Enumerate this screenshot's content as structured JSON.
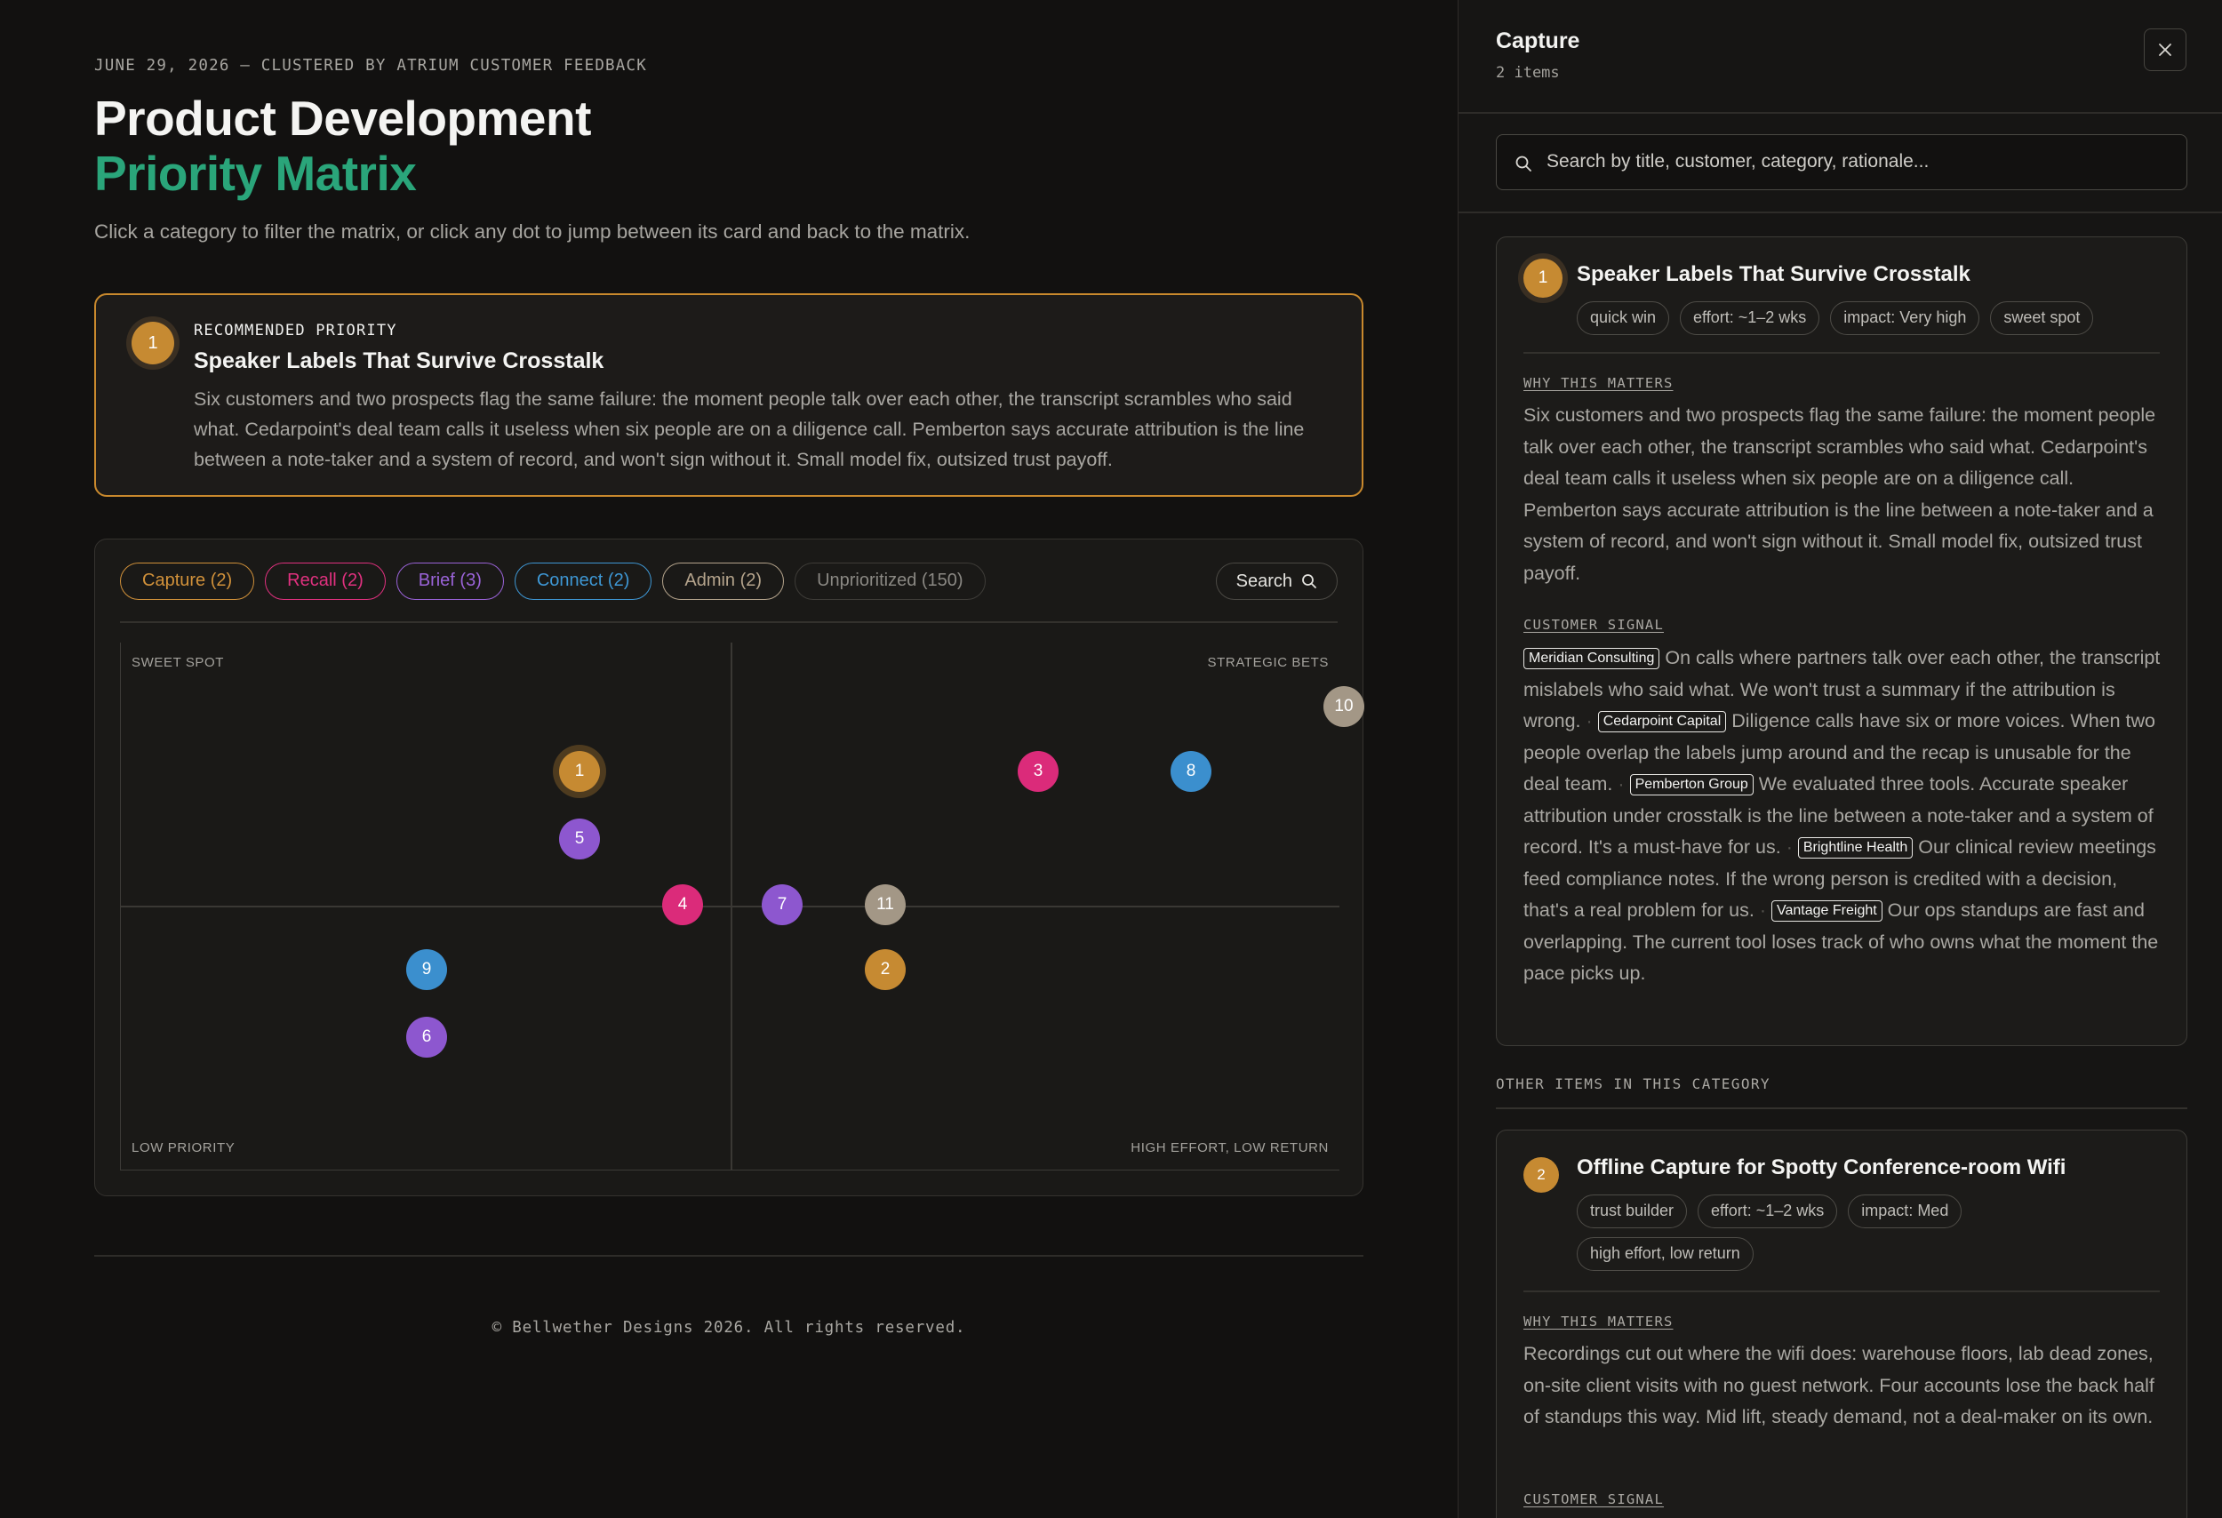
{
  "header": {
    "dateline": "JUNE 29, 2026 — CLUSTERED BY ATRIUM CUSTOMER FEEDBACK",
    "title_line1": "Product Development",
    "title_line2": "Priority Matrix",
    "subtitle": "Click a category to filter the matrix, or click any dot to jump between its card and back to the matrix."
  },
  "recommended": {
    "badge": "1",
    "label": "RECOMMENDED PRIORITY",
    "title": "Speaker Labels That Survive Crosstalk",
    "body": "Six customers and two prospects flag the same failure: the moment people talk over each other, the transcript scrambles who said what. Cedarpoint's deal team calls it useless when six people are on a diligence call. Pemberton says accurate attribution is the line between a note-taker and a system of record, and won't sign without it. Small model fix, outsized trust payoff."
  },
  "filters": [
    {
      "label": "Capture (2)",
      "color": "#d1913a"
    },
    {
      "label": "Recall (2)",
      "color": "#e0317f"
    },
    {
      "label": "Brief (3)",
      "color": "#9a63d8"
    },
    {
      "label": "Connect (2)",
      "color": "#3e97d4"
    },
    {
      "label": "Admin (2)",
      "color": "#b5a48c"
    },
    {
      "label": "Unprioritized (150)",
      "color": "#8a8883"
    }
  ],
  "search_button": "Search",
  "quadrants": {
    "top_left": "SWEET SPOT",
    "top_right": "STRATEGIC BETS",
    "bottom_left": "LOW PRIORITY",
    "bottom_right": "HIGH EFFORT, LOW RETURN"
  },
  "colors": {
    "capture": "#c68a32",
    "recall": "#db2b7a",
    "brief": "#8d57cf",
    "connect": "#3b8fce",
    "admin": "#a39786",
    "accent_green": "#2aa57a"
  },
  "dots": [
    {
      "label": "1",
      "category": "capture",
      "selected": true
    },
    {
      "label": "2",
      "category": "capture"
    },
    {
      "label": "3",
      "category": "recall"
    },
    {
      "label": "4",
      "category": "recall"
    },
    {
      "label": "5",
      "category": "brief"
    },
    {
      "label": "6",
      "category": "brief"
    },
    {
      "label": "7",
      "category": "brief"
    },
    {
      "label": "8",
      "category": "connect"
    },
    {
      "label": "9",
      "category": "connect"
    },
    {
      "label": "10",
      "category": "admin"
    },
    {
      "label": "11",
      "category": "admin"
    }
  ],
  "footer": "© Bellwether Designs 2026. All rights reserved.",
  "panel": {
    "title": "Capture",
    "count": "2 items",
    "search_placeholder": "Search by title, customer, category, rationale...",
    "other_label": "OTHER ITEMS IN THIS CATEGORY",
    "items": [
      {
        "badge": "1",
        "title": "Speaker Labels That Survive Crosstalk",
        "tags": [
          "quick win",
          "effort: ~1–2 wks",
          "impact: Very high",
          "sweet spot"
        ],
        "why_label": "WHY THIS MATTERS",
        "why": "Six customers and two prospects flag the same failure: the moment people talk over each other, the transcript scrambles who said what. Cedarpoint's deal team calls it useless when six people are on a diligence call. Pemberton says accurate attribution is the line between a note-taker and a system of record, and won't sign without it. Small model fix, outsized trust payoff.",
        "signal_label": "CUSTOMER SIGNAL",
        "signals": [
          {
            "customer": "Meridian Consulting",
            "quote": "On calls where partners talk over each other, the transcript mislabels who said what. We won't trust a summary if the attribution is wrong."
          },
          {
            "customer": "Cedarpoint Capital",
            "quote": "Diligence calls have six or more voices. When two people overlap the labels jump around and the recap is unusable for the deal team."
          },
          {
            "customer": "Pemberton Group",
            "quote": "We evaluated three tools. Accurate speaker attribution under crosstalk is the line between a note-taker and a system of record. It's a must-have for us."
          },
          {
            "customer": "Brightline Health",
            "quote": "Our clinical review meetings feed compliance notes. If the wrong person is credited with a decision, that's a real problem for us."
          },
          {
            "customer": "Vantage Freight",
            "quote": "Our ops standups are fast and overlapping. The current tool loses track of who owns what the moment the pace picks up."
          }
        ]
      },
      {
        "badge": "2",
        "title": "Offline Capture for Spotty Conference-room Wifi",
        "tags": [
          "trust builder",
          "effort: ~1–2 wks",
          "impact: Med",
          "high effort, low return"
        ],
        "why_label": "WHY THIS MATTERS",
        "why": "Recordings cut out where the wifi does: warehouse floors, lab dead zones, on-site client visits with no guest network. Four accounts lose the back half of standups this way. Mid lift, steady demand, not a deal-maker on its own.",
        "signal_label": "CUSTOMER SIGNAL"
      }
    ]
  }
}
